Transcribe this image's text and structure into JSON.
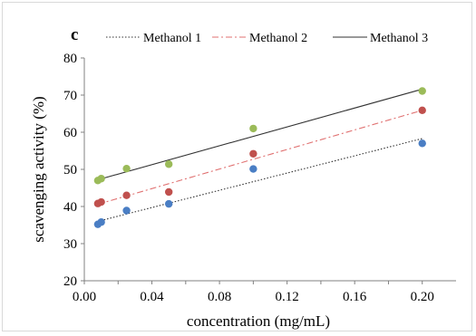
{
  "chart_data": {
    "type": "scatter",
    "panel_label": "c",
    "xlabel": "concentration (mg/mL)",
    "ylabel": "scavenging activity (%)",
    "xlim": [
      0,
      0.22
    ],
    "ylim": [
      20,
      80
    ],
    "x_ticks": [
      "0.00",
      "0.04",
      "0.08",
      "0.12",
      "0.16",
      "0.20"
    ],
    "y_ticks": [
      "20",
      "30",
      "40",
      "50",
      "60",
      "70",
      "80"
    ],
    "grid": false,
    "legend_position": "top",
    "series": [
      {
        "name": "Methanol 1",
        "color": "#4a7ec4",
        "line_style": "dotted",
        "line_color": "#333333",
        "x": [
          0.008,
          0.01,
          0.025,
          0.05,
          0.1,
          0.2
        ],
        "y": [
          35.2,
          35.8,
          38.9,
          40.7,
          50.1,
          57.0
        ],
        "trendline": [
          [
            0.008,
            36.0
          ],
          [
            0.2,
            58.3
          ]
        ]
      },
      {
        "name": "Methanol 2",
        "color": "#c0504d",
        "line_style": "dashdot",
        "line_color": "#e07070",
        "x": [
          0.008,
          0.01,
          0.025,
          0.05,
          0.1,
          0.2
        ],
        "y": [
          40.8,
          41.2,
          43.0,
          43.9,
          54.2,
          65.9
        ],
        "trendline": [
          [
            0.008,
            40.6
          ],
          [
            0.2,
            65.9
          ]
        ]
      },
      {
        "name": "Methanol 3",
        "color": "#9bbb59",
        "line_style": "solid",
        "line_color": "#333333",
        "x": [
          0.008,
          0.01,
          0.025,
          0.05,
          0.1,
          0.2
        ],
        "y": [
          47.0,
          47.5,
          50.2,
          51.4,
          61.0,
          71.1
        ],
        "trendline": [
          [
            0.008,
            47.2
          ],
          [
            0.2,
            71.6
          ]
        ]
      }
    ]
  }
}
